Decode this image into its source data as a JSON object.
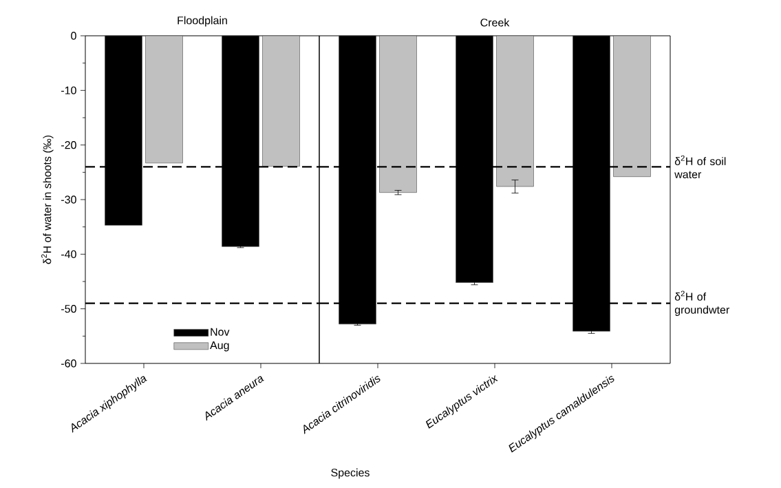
{
  "chart_data": [
    {
      "type": "bar",
      "title": "Floodplain",
      "xlabel": "Species",
      "ylabel": "δ$^{2}$H of water in shoots (‰)",
      "categories": [
        "Acacia xiphophylla",
        "Acacia aneura"
      ],
      "series": [
        {
          "name": "Nov",
          "color": "#000000",
          "values": [
            -34.7,
            -38.6
          ],
          "errors": [
            null,
            0.2
          ]
        },
        {
          "name": "Aug",
          "color": "#c0c0c0",
          "values": [
            -23.3,
            -23.9
          ]
        }
      ],
      "ylim": [
        -60,
        0
      ],
      "yticks": [
        -60,
        -50,
        -40,
        -30,
        -20,
        -10,
        0
      ],
      "ref_lines": [
        {
          "axis": "y",
          "value": -24,
          "line_style": "dashed"
        },
        {
          "axis": "y",
          "value": -49,
          "line_style": "dashed"
        }
      ],
      "legend": "bottom"
    },
    {
      "type": "bar",
      "title": "Creek",
      "categories": [
        "Acacia citrinoviridis",
        "Eucalyptus victrix",
        "Eucalyptus camaldulensis"
      ],
      "series": [
        {
          "color": "#000000",
          "values": [
            -52.8,
            -45.2,
            -54.1
          ],
          "errors": [
            0.2,
            0.4,
            0.4
          ]
        },
        {
          "color": "#c0c0c0",
          "values": [
            -28.7,
            -27.6,
            -25.8
          ],
          "errors": [
            0.4,
            1.2,
            null
          ]
        }
      ],
      "ylim": [
        -60,
        0
      ],
      "yticks": [
        -60,
        -50,
        -40,
        -30,
        -20,
        -10,
        0
      ],
      "ref_lines": [
        {
          "axis": "y",
          "value": -24,
          "line_style": "dashed",
          "label": "δ$^{2}$H of soil water"
        },
        {
          "axis": "y",
          "value": -49,
          "line_style": "dashed",
          "label": "δ$^{2}$H of groundwter"
        }
      ],
      "tick_labels": "x"
    }
  ]
}
